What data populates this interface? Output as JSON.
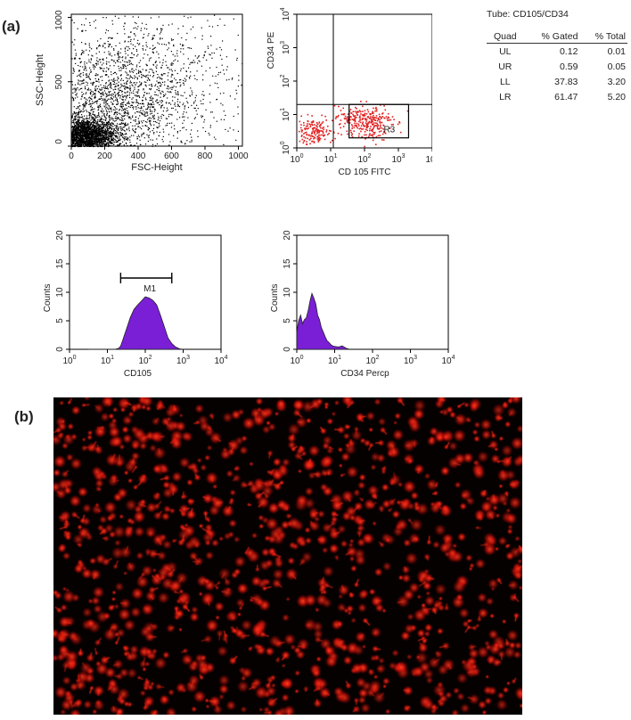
{
  "panel_labels": {
    "a": "(a)",
    "b": "(b)"
  },
  "colors": {
    "scatter_black": "#000000",
    "scatter_red": "#e02020",
    "histogram_fill": "#7a1fd6",
    "micro_bg": "#050101",
    "micro_dot": "#ff2a1a"
  },
  "stats": {
    "tube": "Tube: CD105/CD34",
    "headers": [
      "Quad",
      "% Gated",
      "% Total"
    ],
    "rows": [
      [
        "UL",
        "0.12",
        "0.01"
      ],
      [
        "UR",
        "0.59",
        "0.05"
      ],
      [
        "LL",
        "37.83",
        "3.20"
      ],
      [
        "LR",
        "61.47",
        "5.20"
      ]
    ]
  },
  "chart_data": [
    {
      "type": "scatter",
      "xlabel": "FSC-Height",
      "ylabel": "SSC-Height",
      "xlim": [
        0,
        1024
      ],
      "ylim": [
        0,
        1024
      ],
      "xticks": [
        0,
        200,
        400,
        600,
        800,
        1000
      ],
      "yticks": [
        0,
        500,
        1000
      ],
      "yticklabels": [
        "0",
        "500",
        "1000"
      ],
      "density": [
        {
          "x": 80,
          "y": 80,
          "sx": 90,
          "sy": 70,
          "n": 2600
        },
        {
          "x": 220,
          "y": 300,
          "sx": 220,
          "sy": 260,
          "n": 1700
        },
        {
          "x": 500,
          "y": 500,
          "sx": 320,
          "sy": 320,
          "n": 900
        }
      ]
    },
    {
      "type": "scatter",
      "scale": "log",
      "xlabel": "CD 105 FITC",
      "ylabel": "CD34 PE",
      "xlim": [
        1,
        10000
      ],
      "ylim": [
        1,
        10000
      ],
      "xtick_exponents": [
        "0",
        "1",
        "2",
        "3",
        "4"
      ],
      "ytick_exponents": [
        "0",
        "1",
        "2",
        "3",
        "4"
      ],
      "quadrant_x": 12,
      "quadrant_y": 20,
      "gate": {
        "label": "R3",
        "x": [
          35,
          2000
        ],
        "y": [
          2,
          20
        ]
      },
      "density": [
        {
          "lx": 0.45,
          "ly": 0.5,
          "slx": 0.3,
          "sly": 0.2,
          "n": 170
        },
        {
          "lx": 2.1,
          "ly": 0.8,
          "slx": 0.35,
          "sly": 0.27,
          "n": 260
        },
        {
          "lx": 1.45,
          "ly": 0.9,
          "slx": 0.15,
          "sly": 0.12,
          "n": 40
        }
      ]
    },
    {
      "type": "area",
      "scale": "log-x",
      "xlabel": "CD105",
      "ylabel": "Counts",
      "xlim": [
        1,
        10000
      ],
      "ylim": [
        0,
        20
      ],
      "xtick_exponents": [
        "0",
        "1",
        "2",
        "3",
        "4"
      ],
      "yticks": [
        0,
        5,
        10,
        15,
        20
      ],
      "x_log": [
        0.5,
        0.65,
        0.8,
        0.9,
        1.0,
        1.1,
        1.2,
        1.3,
        1.35,
        1.4,
        1.45,
        1.5,
        1.55,
        1.6,
        1.7,
        1.8,
        1.9,
        2.0,
        2.1,
        2.2,
        2.3,
        2.4,
        2.5,
        2.6,
        2.7,
        2.8,
        2.9,
        3.0
      ],
      "y": [
        0,
        0,
        0,
        0,
        0,
        0,
        0,
        0.2,
        0.6,
        1.5,
        2.5,
        3.5,
        4.5,
        5.5,
        7.0,
        7.8,
        8.5,
        9.2,
        9.0,
        8.6,
        7.8,
        6.0,
        4.0,
        2.0,
        1.0,
        0.4,
        0.1,
        0
      ],
      "marker": {
        "label": "M1",
        "x_log": [
          1.35,
          2.7
        ],
        "y": 12.5
      }
    },
    {
      "type": "area",
      "scale": "log-x",
      "xlabel": "CD34 Percp",
      "ylabel": "Counts",
      "xlim": [
        1,
        10000
      ],
      "ylim": [
        0,
        20
      ],
      "xtick_exponents": [
        "0",
        "1",
        "2",
        "3",
        "4"
      ],
      "yticks": [
        0,
        5,
        10,
        15,
        20
      ],
      "x_log": [
        0,
        0.05,
        0.1,
        0.15,
        0.2,
        0.25,
        0.3,
        0.35,
        0.4,
        0.45,
        0.5,
        0.55,
        0.6,
        0.65,
        0.7,
        0.75,
        0.8,
        0.85,
        0.9,
        0.95,
        1.0,
        1.1,
        1.2,
        1.3,
        1.4
      ],
      "y": [
        3,
        5,
        6,
        4.5,
        5.2,
        5.5,
        6.8,
        8.5,
        9.8,
        9.0,
        8.0,
        6.0,
        5.2,
        3.8,
        3.0,
        2.2,
        1.5,
        1.2,
        0.8,
        0.6,
        0.5,
        0.4,
        0.6,
        0.2,
        0
      ]
    }
  ],
  "micrograph": {
    "dot_count": 1200
  }
}
